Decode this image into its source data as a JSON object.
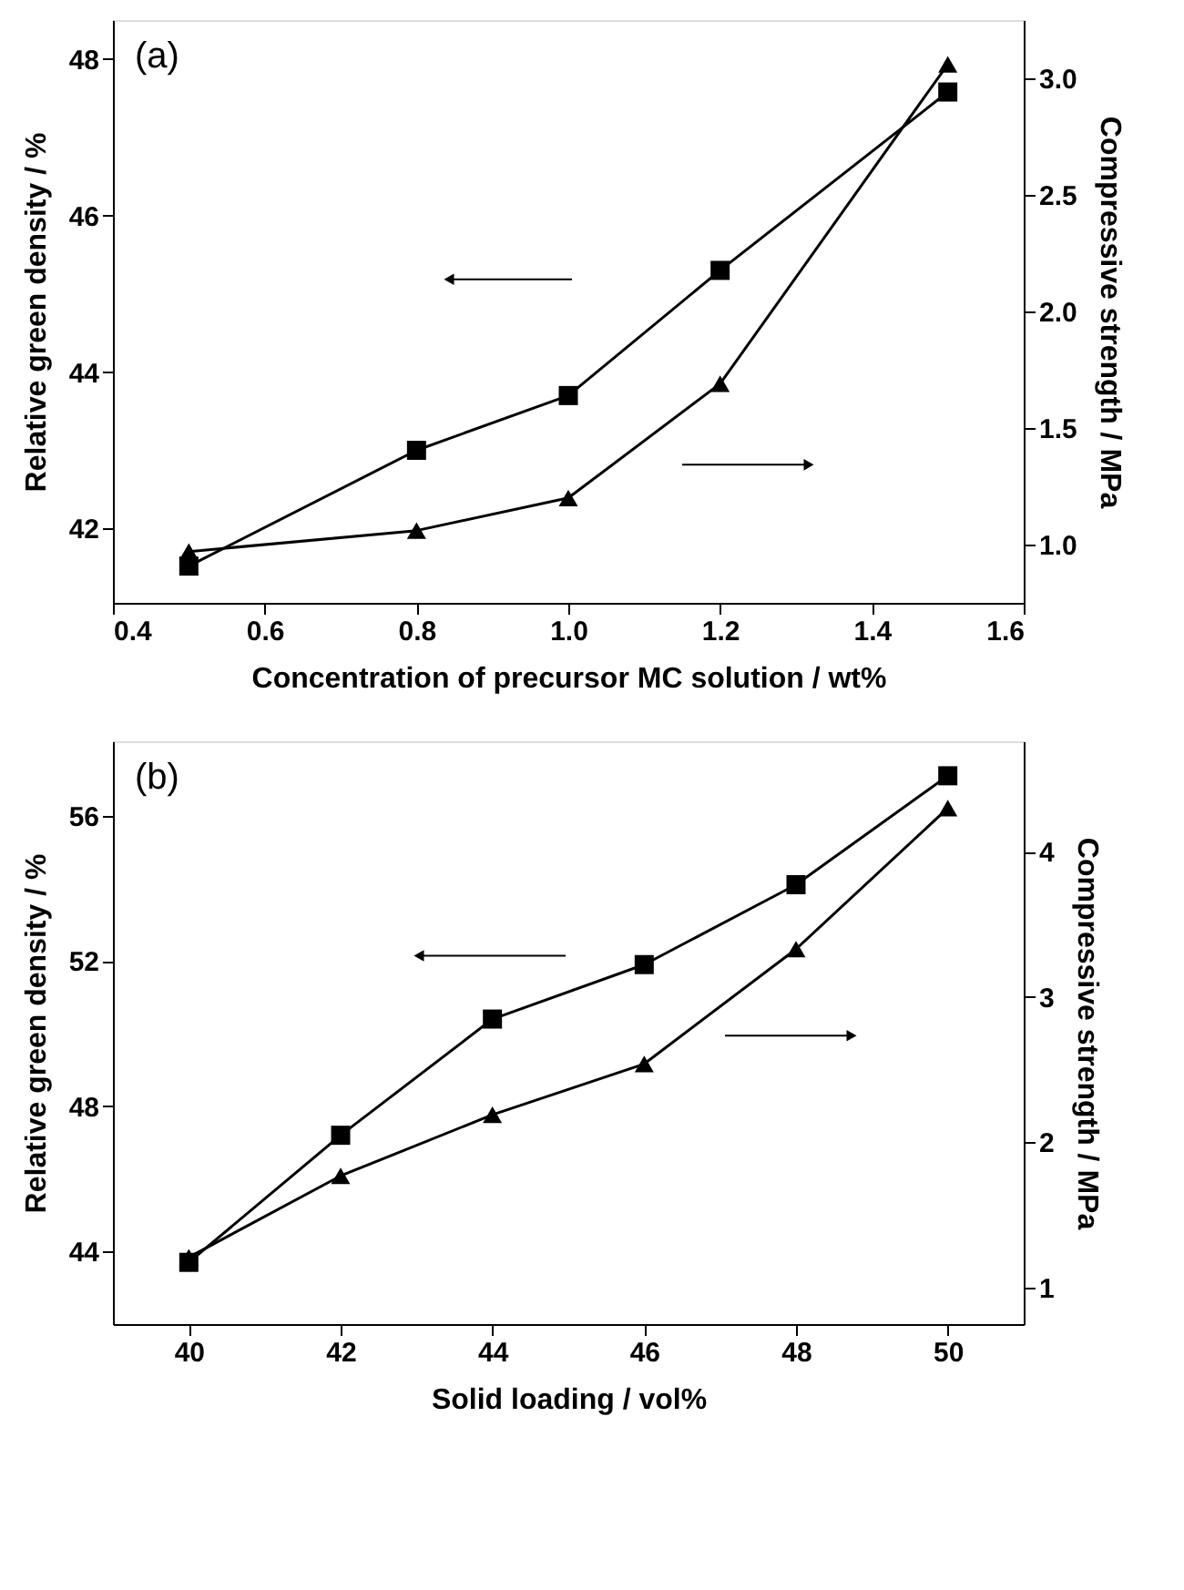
{
  "chart_data": [
    {
      "type": "line",
      "annotations": [
        "(a)"
      ],
      "xlabel": "Concentration of precursor MC solution / wt%",
      "ylabel": "Relative green density / %",
      "y2label": "Compressive strength / MPa",
      "x": [
        0.5,
        0.8,
        1.0,
        1.2,
        1.5
      ],
      "series": [
        {
          "color": "#000000",
          "marker": "square",
          "values": [
            41.52,
            43.0,
            43.7,
            45.3,
            47.58
          ]
        },
        {
          "color": "#000000",
          "marker": "triangle",
          "axis": "y2",
          "values": [
            0.97,
            1.06,
            1.2,
            1.69,
            3.06
          ]
        }
      ],
      "xlim": [
        0.4,
        1.6
      ],
      "xticks": [
        0.4,
        0.6,
        0.8,
        {
          "value": 1.0,
          "label": "1.0"
        },
        1.2,
        1.4,
        1.6
      ],
      "ylim": [
        41.05,
        48.5
      ],
      "yticks": [
        42,
        44,
        46,
        48
      ],
      "y2lim": [
        0.75,
        3.25
      ],
      "y2ticks": [
        {
          "value": 1.0,
          "label": "1.0"
        },
        1.5,
        {
          "value": 2.0,
          "label": "2.0"
        },
        2.5,
        {
          "value": 3.0,
          "label": "3.0"
        }
      ],
      "grid": false,
      "line_style": "solid"
    },
    {
      "type": "line",
      "annotations": [
        "(b)"
      ],
      "xlabel": "Solid loading / vol%",
      "ylabel": "Relative green density / %",
      "y2label": "Compressive strength / MPa",
      "x": [
        40,
        42,
        44,
        46,
        48,
        50
      ],
      "series": [
        {
          "color": "#000000",
          "marker": "square",
          "values": [
            43.7,
            47.2,
            50.4,
            51.9,
            54.1,
            57.1
          ]
        },
        {
          "color": "#000000",
          "marker": "triangle",
          "axis": "y2",
          "values": [
            1.21,
            1.77,
            2.19,
            2.54,
            3.33,
            4.3
          ]
        }
      ],
      "xlim": [
        39,
        51
      ],
      "xticks": [
        40,
        42,
        44,
        46,
        48,
        50
      ],
      "ylim": [
        42,
        58.05
      ],
      "yticks": [
        44,
        48,
        52,
        56
      ],
      "y2lim": [
        0.75,
        4.76
      ],
      "y2ticks": [
        1,
        2,
        3,
        4
      ],
      "grid": false,
      "line_style": "solid"
    }
  ]
}
